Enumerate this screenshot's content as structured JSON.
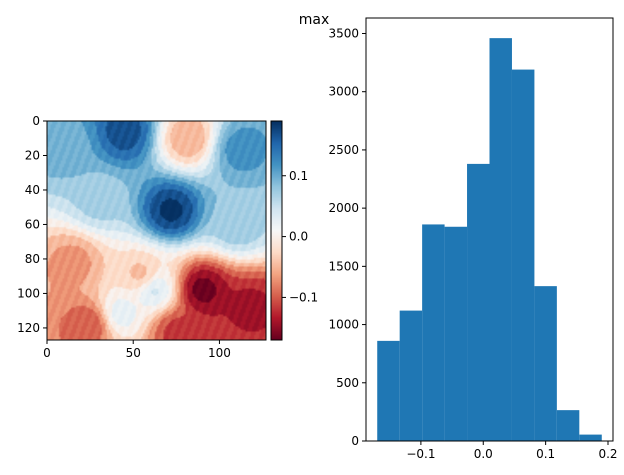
{
  "title": "max",
  "colors": {
    "bar": "#1f77b4",
    "axis": "#000000",
    "background": "#ffffff"
  },
  "chart_data": [
    {
      "type": "heatmap",
      "colormap": "RdBu",
      "xlim": [
        0,
        127
      ],
      "ylim": [
        127,
        0
      ],
      "xticks": [
        0,
        50,
        100
      ],
      "yticks": [
        0,
        20,
        40,
        60,
        80,
        100,
        120
      ],
      "value_range": [
        -0.17,
        0.19
      ],
      "colorbar_ticks": [
        0.1,
        0.0,
        -0.1
      ],
      "colorbar_tick_labels": [
        "0.1",
        "0.0",
        "−0.1"
      ],
      "features": [
        {
          "x": 12,
          "y": 14,
          "value": 0.1
        },
        {
          "x": 45,
          "y": 6,
          "value": 0.17
        },
        {
          "x": 82,
          "y": 10,
          "value": -0.06
        },
        {
          "x": 112,
          "y": 16,
          "value": 0.12
        },
        {
          "x": 72,
          "y": 52,
          "value": 0.19
        },
        {
          "x": 30,
          "y": 46,
          "value": 0.07
        },
        {
          "x": 110,
          "y": 60,
          "value": 0.08
        },
        {
          "x": 15,
          "y": 82,
          "value": -0.07
        },
        {
          "x": 55,
          "y": 90,
          "value": -0.05
        },
        {
          "x": 62,
          "y": 98,
          "value": 0.05
        },
        {
          "x": 90,
          "y": 98,
          "value": -0.17
        },
        {
          "x": 118,
          "y": 108,
          "value": -0.14
        },
        {
          "x": 25,
          "y": 118,
          "value": -0.11
        },
        {
          "x": 75,
          "y": 122,
          "value": -0.12
        },
        {
          "x": 42,
          "y": 112,
          "value": 0.03
        }
      ]
    },
    {
      "type": "bar",
      "subtype": "histogram",
      "bin_edges": [
        -0.17,
        -0.134,
        -0.098,
        -0.062,
        -0.026,
        0.01,
        0.046,
        0.082,
        0.118,
        0.154,
        0.19
      ],
      "values": [
        860,
        1120,
        1860,
        1840,
        2380,
        3460,
        3190,
        1330,
        265,
        55
      ],
      "xlim": [
        -0.188,
        0.208
      ],
      "ylim": [
        0,
        3633
      ],
      "xticks": [
        -0.1,
        0.0,
        0.1,
        0.2
      ],
      "xtick_labels": [
        "−0.1",
        "0.0",
        "0.1",
        "0.2"
      ],
      "yticks": [
        0,
        500,
        1000,
        1500,
        2000,
        2500,
        3000,
        3500
      ],
      "ytick_labels": [
        "0",
        "500",
        "1000",
        "1500",
        "2000",
        "2500",
        "3000",
        "3500"
      ]
    }
  ]
}
